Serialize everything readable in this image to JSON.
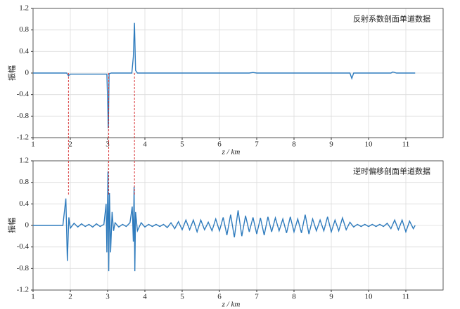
{
  "chart_data": [
    {
      "type": "line",
      "title": "反射系数剖面单道数据",
      "x_label": "z / km",
      "y_label": "振幅",
      "xlim": [
        1,
        12
      ],
      "ylim": [
        -1.2,
        1.2
      ],
      "xticks": [
        1,
        2,
        3,
        4,
        5,
        6,
        7,
        8,
        9,
        10,
        11
      ],
      "yticks": [
        1.2,
        0.8,
        0.4,
        0,
        -0.4,
        -0.8,
        -1.2
      ],
      "grid": true,
      "vlines": {
        "color": "#d62728",
        "x": [
          1.95,
          3.03,
          3.72
        ]
      },
      "series": [
        {
          "color": "#2e7bbd",
          "x": [
            1.0,
            1.9,
            1.95,
            2.0,
            2.1,
            2.9,
            2.98,
            3.0,
            3.02,
            3.04,
            3.1,
            3.65,
            3.69,
            3.72,
            3.75,
            3.8,
            6.8,
            6.9,
            7.0,
            9.5,
            9.55,
            9.6,
            10.6,
            10.65,
            10.75,
            11.25
          ],
          "values": [
            0,
            0,
            -0.05,
            -0.02,
            -0.02,
            -0.02,
            -0.02,
            -0.5,
            -1.02,
            -0.01,
            0,
            0,
            0.3,
            0.93,
            0.05,
            0,
            0,
            0.01,
            0,
            0,
            -0.1,
            0,
            0,
            0.02,
            0,
            0
          ]
        }
      ]
    },
    {
      "type": "line",
      "title": "逆时偏移剖面单道数据",
      "x_label": "z / km",
      "y_label": "振幅",
      "xlim": [
        1,
        12
      ],
      "ylim": [
        -1.2,
        1.2
      ],
      "xticks": [
        1,
        2,
        3,
        4,
        5,
        6,
        7,
        8,
        9,
        10,
        11
      ],
      "yticks": [
        1.2,
        0.8,
        0.4,
        0,
        -0.4,
        -0.8,
        -1.2
      ],
      "grid": true,
      "series": [
        {
          "color": "#2e7bbd",
          "x": [
            1.0,
            1.8,
            1.88,
            1.92,
            1.96,
            2.0,
            2.1,
            2.2,
            2.3,
            2.4,
            2.5,
            2.6,
            2.7,
            2.8,
            2.9,
            2.96,
            2.98,
            3.01,
            3.03,
            3.05,
            3.08,
            3.12,
            3.16,
            3.2,
            3.3,
            3.4,
            3.5,
            3.6,
            3.66,
            3.69,
            3.71,
            3.73,
            3.75,
            3.8,
            3.9,
            4.0,
            4.1,
            4.2,
            4.3,
            4.4,
            4.5,
            4.6,
            4.7,
            4.8,
            4.9,
            5.0,
            5.1,
            5.2,
            5.3,
            5.4,
            5.5,
            5.6,
            5.7,
            5.8,
            5.9,
            6.0,
            6.1,
            6.2,
            6.3,
            6.4,
            6.5,
            6.6,
            6.7,
            6.8,
            6.9,
            7.0,
            7.1,
            7.2,
            7.3,
            7.4,
            7.5,
            7.6,
            7.7,
            7.8,
            7.9,
            8.0,
            8.1,
            8.2,
            8.3,
            8.4,
            8.5,
            8.6,
            8.7,
            8.8,
            8.9,
            9.0,
            9.1,
            9.2,
            9.3,
            9.4,
            9.5,
            9.6,
            9.7,
            9.8,
            9.9,
            10.0,
            10.1,
            10.2,
            10.3,
            10.4,
            10.5,
            10.6,
            10.7,
            10.8,
            10.9,
            11.0,
            11.1,
            11.2,
            11.25
          ],
          "values": [
            0,
            0,
            0.5,
            -0.66,
            0.15,
            -0.05,
            0.04,
            -0.03,
            0.03,
            -0.02,
            0.02,
            -0.03,
            0.03,
            -0.02,
            0.02,
            0.4,
            -0.5,
            1.0,
            -0.85,
            0.6,
            -0.5,
            0.25,
            -0.1,
            0.05,
            -0.03,
            0.02,
            -0.02,
            0.05,
            0.35,
            -0.3,
            0.72,
            -0.85,
            0.25,
            -0.1,
            0.05,
            -0.03,
            0.02,
            -0.02,
            0.02,
            -0.02,
            0.02,
            -0.04,
            0.05,
            -0.06,
            0.07,
            -0.08,
            0.1,
            -0.08,
            0.1,
            -0.12,
            0.1,
            -0.08,
            0.06,
            -0.1,
            0.12,
            -0.1,
            0.15,
            -0.18,
            0.2,
            -0.22,
            0.28,
            -0.2,
            0.18,
            -0.12,
            0.15,
            -0.16,
            0.14,
            -0.18,
            0.16,
            -0.12,
            0.14,
            -0.1,
            0.12,
            -0.14,
            0.16,
            -0.12,
            0.12,
            -0.14,
            0.2,
            -0.16,
            0.12,
            -0.1,
            0.1,
            -0.1,
            0.16,
            -0.12,
            0.1,
            -0.1,
            0.14,
            -0.08,
            0.06,
            -0.03,
            0.02,
            -0.02,
            0.02,
            -0.02,
            0.02,
            -0.02,
            0.02,
            -0.02,
            0.04,
            -0.06,
            0.1,
            -0.08,
            0.1,
            -0.12,
            0.08,
            -0.06,
            0
          ]
        }
      ]
    }
  ]
}
